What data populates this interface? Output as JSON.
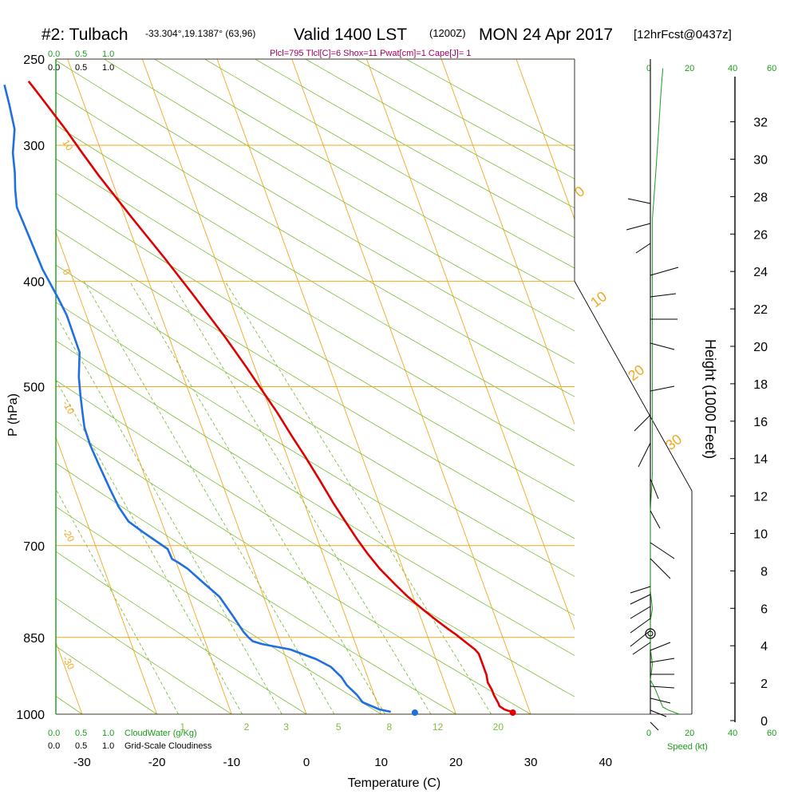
{
  "header": {
    "site": "#2: Tulbach",
    "coords": "-33.304°,19.1387° (63,96)",
    "valid": "Valid 1400 LST",
    "utc": "(1200Z)",
    "date": "MON 24 Apr 2017",
    "forecast": "[12hrFcst@0437z]",
    "indices": "Plcl=795 Tlcl[C]=6 Shox=11 Pwat[cm]=1 Cape[J]= 1"
  },
  "scales": {
    "cloudwater_ticks": [
      "0.0",
      "0.5",
      "1.0"
    ],
    "cloudiness_ticks": [
      "0.0",
      "0.5",
      "1.0"
    ],
    "cloudwater_label": "CloudWater (g/Kg)",
    "cloudiness_label": "Grid-Scale Cloudiness",
    "speed_ticks": [
      "0",
      "20",
      "40",
      "60"
    ],
    "speed_label": "Speed (kt)"
  },
  "chart_data": {
    "type": "line",
    "xlabel": "Temperature (C)",
    "ylabel": "P (hPa)",
    "y2label": "Height (1000 Feet)",
    "x_ticks": [
      -30,
      -20,
      -10,
      0,
      10,
      20,
      30,
      40
    ],
    "p_ticks": [
      250,
      300,
      400,
      500,
      700,
      850,
      1000
    ],
    "height_ticks": [
      0,
      2,
      4,
      6,
      8,
      10,
      12,
      14,
      16,
      18,
      20,
      22,
      24,
      26,
      28,
      30,
      32
    ],
    "dry_adiabat_labels": [
      "-10",
      "0",
      "10",
      "20",
      "30"
    ],
    "isotherm_labels": [
      "10",
      "0",
      "-10",
      "-20",
      "-30"
    ],
    "mixing_ratio_labels": [
      "1",
      "2",
      "3",
      "5",
      "8",
      "12",
      "20"
    ],
    "series": [
      {
        "color": "#e00000",
        "points": [
          [
            27.7,
            995
          ],
          [
            27.2,
            993
          ],
          [
            26.7,
            990
          ],
          [
            26.2,
            983
          ],
          [
            26.2,
            977
          ],
          [
            26.0,
            960
          ],
          [
            26.0,
            950
          ],
          [
            25.8,
            935
          ],
          [
            26.0,
            920
          ],
          [
            26.0,
            880
          ],
          [
            25.7,
            872
          ],
          [
            24.7,
            857
          ],
          [
            23.9,
            845
          ],
          [
            23.1,
            835
          ],
          [
            22.0,
            820
          ],
          [
            20.6,
            800
          ],
          [
            19.3,
            780
          ],
          [
            18.2,
            760
          ],
          [
            16.9,
            735
          ],
          [
            16.0,
            712
          ],
          [
            15.3,
            690
          ],
          [
            14.6,
            665
          ],
          [
            13.9,
            640
          ],
          [
            13.2,
            610
          ],
          [
            12.4,
            580
          ],
          [
            11.6,
            555
          ],
          [
            10.8,
            528
          ],
          [
            9.9,
            505
          ],
          [
            8.9,
            480
          ],
          [
            7.5,
            450
          ],
          [
            5.2,
            410
          ],
          [
            3.2,
            380
          ],
          [
            0.9,
            350
          ],
          [
            -1.5,
            320
          ],
          [
            -2.6,
            305
          ],
          [
            -3.7,
            290
          ],
          [
            -5.7,
            268
          ],
          [
            -6.3,
            262
          ]
        ]
      },
      {
        "color": "#1f6fe0",
        "points": [
          [
            11.4,
            995
          ],
          [
            10.0,
            990
          ],
          [
            8.1,
            975
          ],
          [
            7.7,
            960
          ],
          [
            6.8,
            940
          ],
          [
            6.5,
            925
          ],
          [
            5.6,
            905
          ],
          [
            4.0,
            890
          ],
          [
            1.0,
            872
          ],
          [
            -2.5,
            862
          ],
          [
            -3.6,
            857
          ],
          [
            -4.0,
            850
          ],
          [
            -4.4,
            840
          ],
          [
            -5.1,
            810
          ],
          [
            -5.9,
            780
          ],
          [
            -7.5,
            755
          ],
          [
            -8.8,
            735
          ],
          [
            -9.8,
            725
          ],
          [
            -10.4,
            720
          ],
          [
            -10.5,
            705
          ],
          [
            -11.5,
            695
          ],
          [
            -13.0,
            680
          ],
          [
            -14.4,
            665
          ],
          [
            -15.0,
            645
          ],
          [
            -15.3,
            620
          ],
          [
            -15.6,
            590
          ],
          [
            -15.8,
            565
          ],
          [
            -15.7,
            545
          ],
          [
            -15.3,
            530
          ],
          [
            -14.7,
            510
          ],
          [
            -14.0,
            490
          ],
          [
            -12.7,
            465
          ],
          [
            -12.6,
            430
          ],
          [
            -12.9,
            415
          ],
          [
            -13.6,
            390
          ],
          [
            -13.8,
            365
          ],
          [
            -14.0,
            342
          ],
          [
            -13.4,
            330
          ],
          [
            -12.6,
            318
          ],
          [
            -11.9,
            305
          ],
          [
            -10.5,
            290
          ],
          [
            -10.0,
            275
          ],
          [
            -9.7,
            264
          ]
        ]
      }
    ],
    "surface_markers": [
      {
        "color": "#e00000",
        "x": 27.6,
        "p": 1000
      },
      {
        "color": "#1f6fe0",
        "x": 14.5,
        "p": 1000
      }
    ],
    "wind_speed_profile": [
      [
        14,
        1000
      ],
      [
        9,
        992
      ],
      [
        6,
        985
      ],
      [
        4,
        965
      ],
      [
        2,
        945
      ],
      [
        0,
        930
      ],
      [
        1,
        900
      ],
      [
        0,
        870
      ],
      [
        0,
        845
      ],
      [
        0,
        820
      ],
      [
        1,
        800
      ],
      [
        0,
        770
      ],
      [
        0,
        730
      ],
      [
        0,
        690
      ],
      [
        0,
        650
      ],
      [
        1,
        600
      ],
      [
        1,
        550
      ],
      [
        1,
        500
      ],
      [
        1,
        460
      ],
      [
        1,
        420
      ],
      [
        1,
        390
      ],
      [
        1,
        350
      ],
      [
        2,
        330
      ],
      [
        3,
        310
      ],
      [
        4,
        290
      ],
      [
        5,
        270
      ],
      [
        6,
        255
      ]
    ],
    "colors": {
      "isobar": "#f2a81d",
      "skew_isotherm": "#f2a81d",
      "dry_adiabat": "#7fbf3a",
      "mixing_ratio": "#7fbf3a",
      "temperature": "#e00000",
      "dewpoint": "#1f6fe0",
      "index_text": "#a0005a",
      "scale_green": "#1a9d1a"
    }
  }
}
